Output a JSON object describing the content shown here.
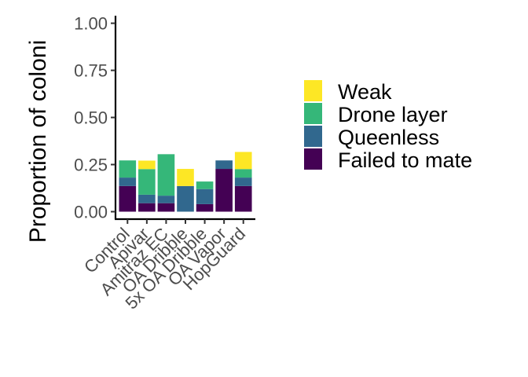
{
  "chart_data": {
    "type": "bar",
    "stacked": true,
    "title": "",
    "xlabel": "",
    "ylabel": "Proportion of coloni",
    "ylim": [
      0,
      1.04
    ],
    "yticks": [
      "0.00",
      "0.25",
      "0.50",
      "0.75",
      "1.00"
    ],
    "grid": false,
    "legend_position": "right",
    "categories": [
      "Control",
      "Apivar",
      "Amitraz EC",
      "OA Dribble",
      "5x OA Dribble",
      "OA Vapor",
      "HopGuard"
    ],
    "series": [
      {
        "name": "Failed to mate",
        "color": "#440154",
        "values": [
          0.136,
          0.045,
          0.045,
          0.0,
          0.04,
          0.227,
          0.136
        ]
      },
      {
        "name": "Queenless",
        "color": "#31688E",
        "values": [
          0.045,
          0.045,
          0.04,
          0.136,
          0.08,
          0.045,
          0.045
        ]
      },
      {
        "name": "Drone layer",
        "color": "#35B779",
        "values": [
          0.091,
          0.136,
          0.22,
          0.0,
          0.04,
          0.0,
          0.045
        ]
      },
      {
        "name": "Weak",
        "color": "#FDE725",
        "values": [
          0.0,
          0.045,
          0.0,
          0.091,
          0.0,
          0.0,
          0.091
        ]
      }
    ],
    "legend_order": [
      "Weak",
      "Drone layer",
      "Queenless",
      "Failed to mate"
    ]
  }
}
